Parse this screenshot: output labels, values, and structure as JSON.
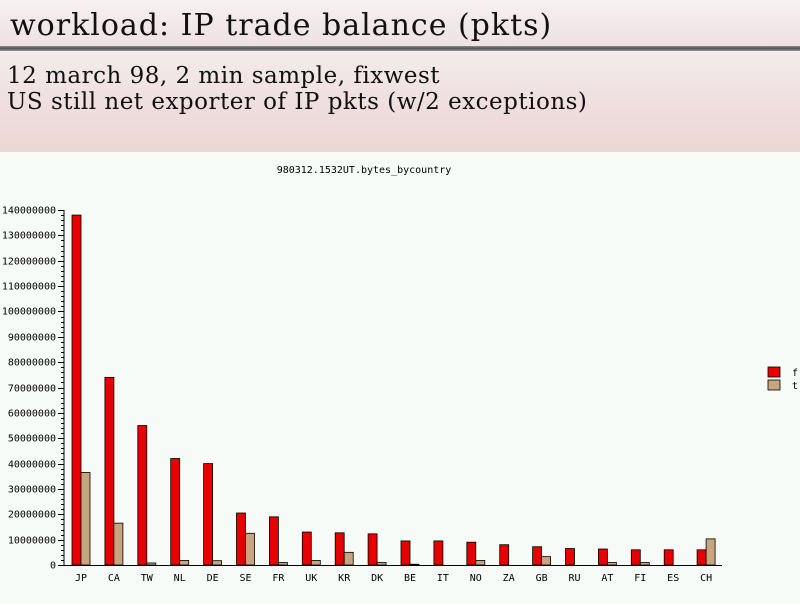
{
  "slide": {
    "title": "workload: IP trade balance (pkts)",
    "subtitle_line1": "12 march 98, 2 min sample, fixwest",
    "subtitle_line2": "US still net exporter of IP pkts (w/2 exceptions)"
  },
  "colors": {
    "from": "#e60000",
    "to": "#c8a57e"
  },
  "chart_data": {
    "type": "bar",
    "title": "980312.1532UT.bytes_bycountry",
    "xlabel": "",
    "ylabel": "",
    "ylim": [
      0,
      140000000
    ],
    "yticks": [
      0,
      10000000,
      20000000,
      30000000,
      40000000,
      50000000,
      60000000,
      70000000,
      80000000,
      90000000,
      100000000,
      110000000,
      120000000,
      130000000,
      140000000
    ],
    "ytick_labels": [
      "0",
      "10000000",
      "20000000",
      "30000000",
      "40000000",
      "50000000",
      "60000000",
      "70000000",
      "80000000",
      "90000000",
      "100000000",
      "110000000",
      "120000000",
      "130000000",
      "140000000"
    ],
    "categories": [
      "JP",
      "CA",
      "TW",
      "NL",
      "DE",
      "SE",
      "FR",
      "UK",
      "KR",
      "DK",
      "BE",
      "IT",
      "NO",
      "ZA",
      "GB",
      "RU",
      "AT",
      "FI",
      "ES",
      "CH"
    ],
    "series": [
      {
        "name": "f",
        "values": [
          138000000,
          74000000,
          55000000,
          42000000,
          40000000,
          20500000,
          19000000,
          13000000,
          12700000,
          12300000,
          9500000,
          9500000,
          9000000,
          8000000,
          7200000,
          6500000,
          6300000,
          6000000,
          6000000,
          6000000
        ]
      },
      {
        "name": "t",
        "values": [
          36500000,
          16500000,
          800000,
          1800000,
          1700000,
          12500000,
          1000000,
          1800000,
          5000000,
          1000000,
          300000,
          0,
          1800000,
          0,
          3300000,
          0,
          1000000,
          1000000,
          0,
          10300000
        ]
      }
    ],
    "grid": false,
    "legend": "right"
  }
}
